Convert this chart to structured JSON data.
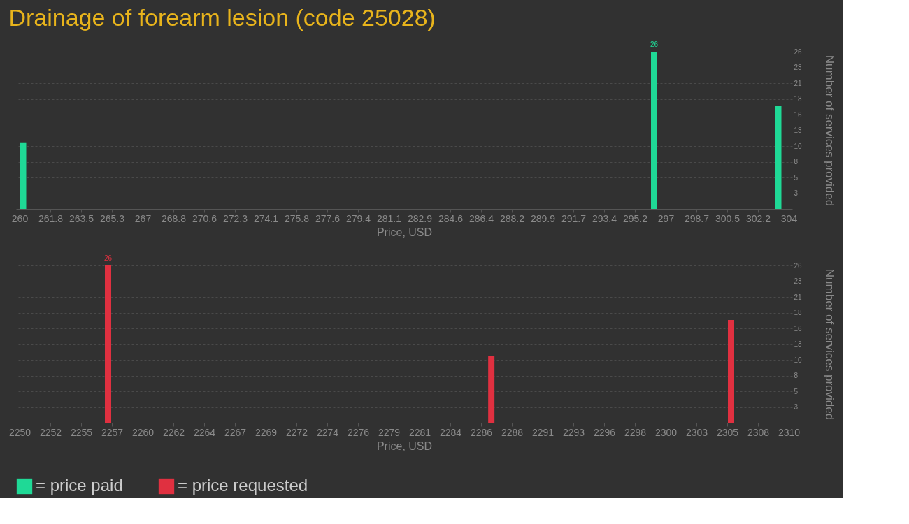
{
  "chart_data": [
    {
      "type": "bar",
      "title": "Drainage of forearm lesion (code 25028)",
      "xlabel": "Price, USD",
      "ylabel": "Number of services provided",
      "x": [
        260.2,
        296.3,
        303.4
      ],
      "series": [
        {
          "name": "= price paid",
          "color": "#1fd996",
          "values": [
            11,
            26,
            17
          ],
          "value_labels": [
            null,
            "26",
            null
          ]
        }
      ],
      "xlim": [
        260,
        304
      ],
      "xticks": [
        260,
        {
          "value": 261.76,
          "label": "261.8"
        },
        {
          "value": 263.52,
          "label": "263.5"
        },
        {
          "value": 265.28,
          "label": "265.3"
        },
        {
          "value": 267.04,
          "label": "267"
        },
        268.8,
        {
          "value": 270.56,
          "label": "270.6"
        },
        {
          "value": 272.32,
          "label": "272.3"
        },
        {
          "value": 274.08,
          "label": "274.1"
        },
        {
          "value": 275.84,
          "label": "275.8"
        },
        277.6,
        {
          "value": 279.36,
          "label": "279.4"
        },
        {
          "value": 281.12,
          "label": "281.1"
        },
        {
          "value": 282.88,
          "label": "282.9"
        },
        {
          "value": 284.64,
          "label": "284.6"
        },
        286.4,
        {
          "value": 288.16,
          "label": "288.2"
        },
        {
          "value": 289.92,
          "label": "289.9"
        },
        {
          "value": 291.68,
          "label": "291.7"
        },
        {
          "value": 293.44,
          "label": "293.4"
        },
        295.2,
        {
          "value": 296.96,
          "label": "297"
        },
        {
          "value": 298.72,
          "label": "298.7"
        },
        {
          "value": 300.48,
          "label": "300.5"
        },
        {
          "value": 302.24,
          "label": "302.2"
        },
        304
      ],
      "ylim": [
        0,
        26
      ],
      "yticks": [
        {
          "value": 2.6,
          "label": "3"
        },
        {
          "value": 5.2,
          "label": "5"
        },
        {
          "value": 7.8,
          "label": "8"
        },
        {
          "value": 10.4,
          "label": "10"
        },
        13,
        {
          "value": 15.6,
          "label": "16"
        },
        {
          "value": 18.2,
          "label": "18"
        },
        {
          "value": 20.8,
          "label": "21"
        },
        {
          "value": 23.4,
          "label": "23"
        },
        26
      ],
      "grid": "y"
    },
    {
      "type": "bar",
      "xlabel": "Price, USD",
      "ylabel": "Number of services provided",
      "x": [
        2256.9,
        2286.8,
        2305.5
      ],
      "series": [
        {
          "name": "= price requested",
          "color": "#e03040",
          "values": [
            26,
            11,
            17
          ],
          "value_labels": [
            "26",
            null,
            null
          ]
        }
      ],
      "xlim": [
        2250,
        2310
      ],
      "xticks": [
        2250,
        {
          "value": 2252.4,
          "label": "2252"
        },
        {
          "value": 2254.8,
          "label": "2255"
        },
        {
          "value": 2257.2,
          "label": "2257"
        },
        {
          "value": 2259.6,
          "label": "2260"
        },
        2262,
        {
          "value": 2264.4,
          "label": "2264"
        },
        {
          "value": 2266.8,
          "label": "2267"
        },
        {
          "value": 2269.2,
          "label": "2269"
        },
        {
          "value": 2271.6,
          "label": "2272"
        },
        2274,
        {
          "value": 2276.4,
          "label": "2276"
        },
        {
          "value": 2278.8,
          "label": "2279"
        },
        {
          "value": 2281.2,
          "label": "2281"
        },
        {
          "value": 2283.6,
          "label": "2284"
        },
        2286,
        {
          "value": 2288.4,
          "label": "2288"
        },
        {
          "value": 2290.8,
          "label": "2291"
        },
        {
          "value": 2293.2,
          "label": "2293"
        },
        {
          "value": 2295.6,
          "label": "2296"
        },
        2298,
        {
          "value": 2300.4,
          "label": "2300"
        },
        {
          "value": 2302.8,
          "label": "2303"
        },
        {
          "value": 2305.2,
          "label": "2305"
        },
        {
          "value": 2307.6,
          "label": "2308"
        },
        2310
      ],
      "ylim": [
        0,
        26
      ],
      "yticks": [
        {
          "value": 2.6,
          "label": "3"
        },
        {
          "value": 5.2,
          "label": "5"
        },
        {
          "value": 7.8,
          "label": "8"
        },
        {
          "value": 10.4,
          "label": "10"
        },
        13,
        {
          "value": 15.6,
          "label": "16"
        },
        {
          "value": 18.2,
          "label": "18"
        },
        {
          "value": 20.8,
          "label": "21"
        },
        {
          "value": 23.4,
          "label": "23"
        },
        26
      ],
      "grid": "y",
      "legend": "bottom left"
    }
  ]
}
